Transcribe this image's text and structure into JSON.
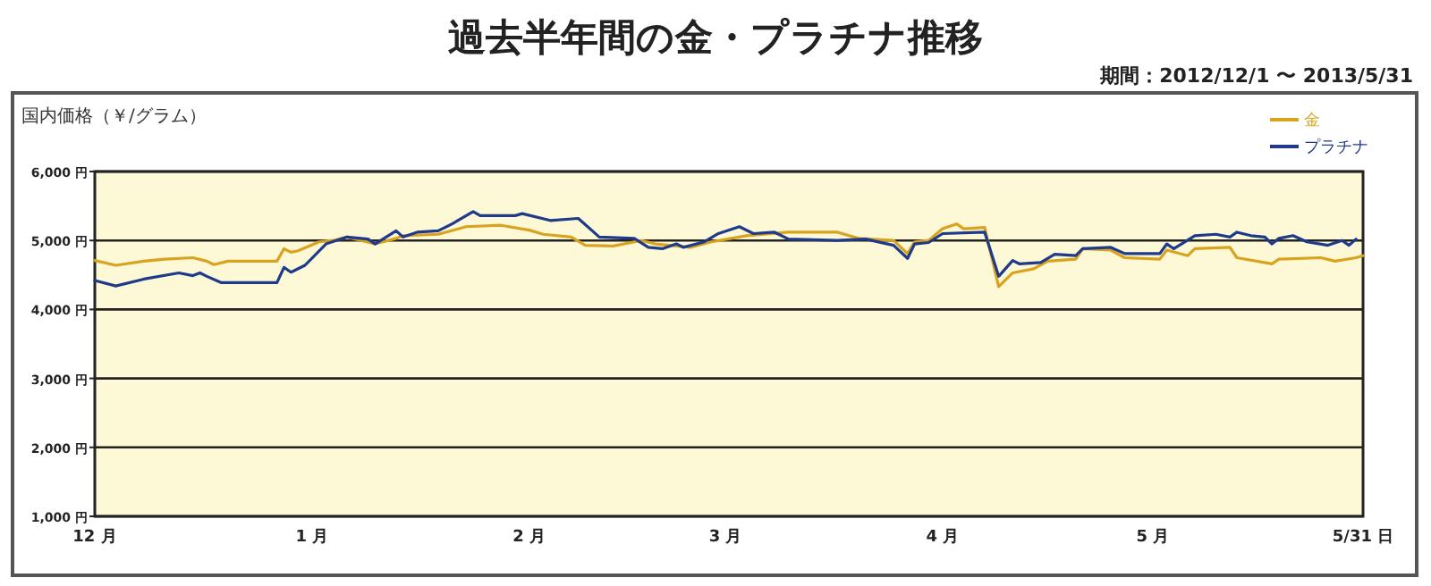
{
  "chart_data": {
    "type": "line",
    "title": "過去半年間の金・プラチナ推移",
    "subtitle": "期間：2012/12/1 〜 2013/5/31",
    "ylabel": "国内価格（￥/グラム）",
    "xlim": [
      "2012-12-01",
      "2013-05-31"
    ],
    "xticks": [
      {
        "value": "2012-12-01",
        "label": "12 月"
      },
      {
        "value": "2013-01-01",
        "label": "1 月"
      },
      {
        "value": "2013-02-01",
        "label": "2 月"
      },
      {
        "value": "2013-03-01",
        "label": "3 月"
      },
      {
        "value": "2013-04-01",
        "label": "4 月"
      },
      {
        "value": "2013-05-01",
        "label": "5 月"
      },
      {
        "value": "2013-05-31",
        "label": "5/31 日"
      }
    ],
    "ylim": [
      1000,
      6000
    ],
    "yticks": [
      {
        "value": 1000,
        "label": "1,000 円"
      },
      {
        "value": 2000,
        "label": "2,000 円"
      },
      {
        "value": 3000,
        "label": "3,000 円"
      },
      {
        "value": 4000,
        "label": "4,000 円"
      },
      {
        "value": 5000,
        "label": "5,000 円"
      },
      {
        "value": 6000,
        "label": "6,000 円"
      }
    ],
    "grid": "y",
    "legend": "top right",
    "series": [
      {
        "name": "金",
        "color": "#d9a21f",
        "x": [
          "2012-12-01",
          "2012-12-04",
          "2012-12-08",
          "2012-12-11",
          "2012-12-15",
          "2012-12-17",
          "2012-12-18",
          "2012-12-20",
          "2012-12-27",
          "2012-12-28",
          "2012-12-29",
          "2012-12-30",
          "2013-01-02",
          "2013-01-04",
          "2013-01-06",
          "2013-01-10",
          "2013-01-13",
          "2013-01-14",
          "2013-01-19",
          "2013-01-23",
          "2013-01-28",
          "2013-02-01",
          "2013-02-03",
          "2013-02-07",
          "2013-02-09",
          "2013-02-13",
          "2013-02-17",
          "2013-02-19",
          "2013-02-24",
          "2013-02-27",
          "2013-03-04",
          "2013-03-10",
          "2013-03-17",
          "2013-03-20",
          "2013-03-25",
          "2013-03-27",
          "2013-03-28",
          "2013-03-30",
          "2013-04-01",
          "2013-04-03",
          "2013-04-04",
          "2013-04-07",
          "2013-04-09",
          "2013-04-11",
          "2013-04-14",
          "2013-04-16",
          "2013-04-20",
          "2013-04-21",
          "2013-04-25",
          "2013-04-27",
          "2013-05-02",
          "2013-05-03",
          "2013-05-06",
          "2013-05-07",
          "2013-05-12",
          "2013-05-13",
          "2013-05-18",
          "2013-05-19",
          "2013-05-25",
          "2013-05-27",
          "2013-05-30",
          "2013-05-31"
        ],
        "values": [
          4710,
          4640,
          4700,
          4730,
          4750,
          4700,
          4650,
          4700,
          4700,
          4880,
          4830,
          4850,
          4980,
          5000,
          5050,
          4950,
          5030,
          5070,
          5090,
          5200,
          5220,
          5150,
          5090,
          5050,
          4930,
          4920,
          5000,
          4950,
          4900,
          4980,
          5070,
          5120,
          5120,
          5030,
          5000,
          4810,
          4980,
          5000,
          5170,
          5240,
          5170,
          5190,
          4330,
          4530,
          4590,
          4700,
          4730,
          4880,
          4860,
          4750,
          4730,
          4860,
          4780,
          4880,
          4900,
          4750,
          4660,
          4730,
          4750,
          4700,
          4750,
          4780
        ]
      },
      {
        "name": "プラチナ",
        "color": "#1f3a8a",
        "x": [
          "2012-12-01",
          "2012-12-04",
          "2012-12-08",
          "2012-12-13",
          "2012-12-15",
          "2012-12-16",
          "2012-12-17",
          "2012-12-19",
          "2012-12-27",
          "2012-12-28",
          "2012-12-29",
          "2012-12-31",
          "2013-01-03",
          "2013-01-06",
          "2013-01-09",
          "2013-01-10",
          "2013-01-13",
          "2013-01-14",
          "2013-01-16",
          "2013-01-19",
          "2013-01-21",
          "2013-01-24",
          "2013-01-25",
          "2013-01-30",
          "2013-01-31",
          "2013-02-04",
          "2013-02-08",
          "2013-02-10",
          "2013-02-11",
          "2013-02-16",
          "2013-02-18",
          "2013-02-20",
          "2013-02-22",
          "2013-02-23",
          "2013-02-26",
          "2013-02-28",
          "2013-03-03",
          "2013-03-05",
          "2013-03-08",
          "2013-03-10",
          "2013-03-17",
          "2013-03-21",
          "2013-03-25",
          "2013-03-27",
          "2013-03-28",
          "2013-03-30",
          "2013-04-01",
          "2013-04-07",
          "2013-04-09",
          "2013-04-11",
          "2013-04-12",
          "2013-04-15",
          "2013-04-17",
          "2013-04-20",
          "2013-04-21",
          "2013-04-25",
          "2013-04-27",
          "2013-05-02",
          "2013-05-03",
          "2013-05-04",
          "2013-05-07",
          "2013-05-10",
          "2013-05-12",
          "2013-05-13",
          "2013-05-15",
          "2013-05-17",
          "2013-05-18",
          "2013-05-19",
          "2013-05-21",
          "2013-05-23",
          "2013-05-26",
          "2013-05-28",
          "2013-05-29",
          "2013-05-30"
        ],
        "values": [
          4420,
          4340,
          4440,
          4530,
          4490,
          4530,
          4480,
          4390,
          4390,
          4610,
          4540,
          4640,
          4950,
          5050,
          5020,
          4950,
          5140,
          5050,
          5120,
          5140,
          5240,
          5420,
          5360,
          5360,
          5390,
          5290,
          5320,
          5140,
          5050,
          5030,
          4900,
          4880,
          4950,
          4900,
          4980,
          5100,
          5200,
          5100,
          5120,
          5020,
          5000,
          5020,
          4930,
          4740,
          4950,
          4970,
          5100,
          5120,
          4480,
          4710,
          4660,
          4680,
          4800,
          4780,
          4880,
          4900,
          4810,
          4810,
          4950,
          4880,
          5070,
          5090,
          5050,
          5120,
          5070,
          5050,
          4950,
          5030,
          5070,
          4980,
          4930,
          5000,
          4930,
          5020
        ]
      }
    ]
  }
}
